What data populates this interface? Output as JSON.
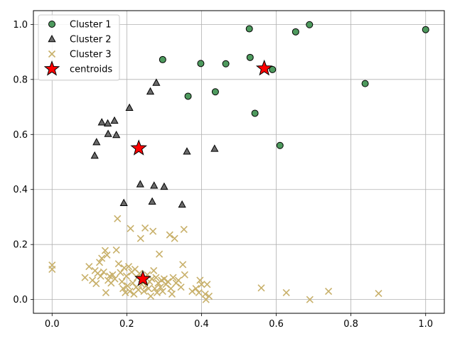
{
  "chart_data": {
    "type": "scatter",
    "title": "",
    "xlabel": "",
    "ylabel": "",
    "xlim": [
      -0.05,
      1.05
    ],
    "ylim": [
      -0.05,
      1.05
    ],
    "xticks": [
      0.0,
      0.2,
      0.4,
      0.6,
      0.8,
      1.0
    ],
    "yticks": [
      0.0,
      0.2,
      0.4,
      0.6,
      0.8,
      1.0
    ],
    "xtick_labels": [
      "0.0",
      "0.2",
      "0.4",
      "0.6",
      "0.8",
      "1.0"
    ],
    "ytick_labels": [
      "0.0",
      "0.2",
      "0.4",
      "0.6",
      "0.8",
      "1.0"
    ],
    "grid": true,
    "legend_position": "top-left",
    "series": [
      {
        "name": "Cluster 1",
        "marker": "circle",
        "color": "#4e9a5e",
        "points": [
          [
            0.296,
            0.872
          ],
          [
            0.398,
            0.858
          ],
          [
            0.364,
            0.739
          ],
          [
            0.465,
            0.857
          ],
          [
            0.437,
            0.755
          ],
          [
            0.528,
            0.984
          ],
          [
            0.53,
            0.88
          ],
          [
            0.543,
            0.677
          ],
          [
            0.59,
            0.836
          ],
          [
            0.61,
            0.56
          ],
          [
            0.652,
            0.973
          ],
          [
            0.689,
            0.999
          ],
          [
            0.838,
            0.785
          ],
          [
            1.0,
            0.981
          ]
        ]
      },
      {
        "name": "Cluster 2",
        "marker": "triangle",
        "color": "#6b6b6b",
        "points": [
          [
            0.114,
            0.523
          ],
          [
            0.119,
            0.572
          ],
          [
            0.133,
            0.644
          ],
          [
            0.149,
            0.64
          ],
          [
            0.15,
            0.602
          ],
          [
            0.167,
            0.65
          ],
          [
            0.172,
            0.598
          ],
          [
            0.192,
            0.351
          ],
          [
            0.207,
            0.697
          ],
          [
            0.236,
            0.419
          ],
          [
            0.263,
            0.756
          ],
          [
            0.268,
            0.356
          ],
          [
            0.273,
            0.414
          ],
          [
            0.279,
            0.788
          ],
          [
            0.3,
            0.41
          ],
          [
            0.348,
            0.345
          ],
          [
            0.361,
            0.538
          ],
          [
            0.435,
            0.548
          ]
        ]
      },
      {
        "name": "Cluster 3",
        "marker": "x",
        "color": "#c8b06a",
        "points": [
          [
            0.0,
            0.125
          ],
          [
            0.0,
            0.11
          ],
          [
            0.088,
            0.08
          ],
          [
            0.099,
            0.12
          ],
          [
            0.108,
            0.07
          ],
          [
            0.115,
            0.105
          ],
          [
            0.118,
            0.058
          ],
          [
            0.122,
            0.095
          ],
          [
            0.127,
            0.135
          ],
          [
            0.13,
            0.085
          ],
          [
            0.133,
            0.15
          ],
          [
            0.138,
            0.1
          ],
          [
            0.142,
            0.178
          ],
          [
            0.144,
            0.025
          ],
          [
            0.147,
            0.162
          ],
          [
            0.15,
            0.07
          ],
          [
            0.154,
            0.085
          ],
          [
            0.158,
            0.06
          ],
          [
            0.162,
            0.09
          ],
          [
            0.168,
            0.075
          ],
          [
            0.172,
            0.18
          ],
          [
            0.175,
            0.294
          ],
          [
            0.178,
            0.13
          ],
          [
            0.183,
            0.098
          ],
          [
            0.187,
            0.065
          ],
          [
            0.19,
            0.04
          ],
          [
            0.193,
            0.115
          ],
          [
            0.196,
            0.025
          ],
          [
            0.199,
            0.085
          ],
          [
            0.202,
            0.05
          ],
          [
            0.205,
            0.12
          ],
          [
            0.208,
            0.03
          ],
          [
            0.21,
            0.258
          ],
          [
            0.213,
            0.1
          ],
          [
            0.216,
            0.06
          ],
          [
            0.219,
            0.02
          ],
          [
            0.222,
            0.11
          ],
          [
            0.225,
            0.045
          ],
          [
            0.228,
            0.08
          ],
          [
            0.231,
            0.035
          ],
          [
            0.234,
            0.095
          ],
          [
            0.237,
            0.222
          ],
          [
            0.24,
            0.055
          ],
          [
            0.243,
            0.07
          ],
          [
            0.246,
            0.03
          ],
          [
            0.249,
            0.26
          ],
          [
            0.252,
            0.05
          ],
          [
            0.255,
            0.09
          ],
          [
            0.258,
            0.04
          ],
          [
            0.261,
            0.065
          ],
          [
            0.264,
            0.012
          ],
          [
            0.267,
            0.075
          ],
          [
            0.27,
            0.248
          ],
          [
            0.272,
            0.105
          ],
          [
            0.275,
            0.04
          ],
          [
            0.278,
            0.08
          ],
          [
            0.281,
            0.025
          ],
          [
            0.284,
            0.06
          ],
          [
            0.287,
            0.165
          ],
          [
            0.29,
            0.045
          ],
          [
            0.293,
            0.07
          ],
          [
            0.296,
            0.03
          ],
          [
            0.3,
            0.075
          ],
          [
            0.305,
            0.055
          ],
          [
            0.31,
            0.065
          ],
          [
            0.315,
            0.235
          ],
          [
            0.318,
            0.04
          ],
          [
            0.321,
            0.02
          ],
          [
            0.324,
            0.08
          ],
          [
            0.328,
            0.222
          ],
          [
            0.332,
            0.06
          ],
          [
            0.338,
            0.07
          ],
          [
            0.345,
            0.045
          ],
          [
            0.35,
            0.127
          ],
          [
            0.353,
            0.255
          ],
          [
            0.355,
            0.09
          ],
          [
            0.375,
            0.03
          ],
          [
            0.385,
            0.04
          ],
          [
            0.393,
            0.025
          ],
          [
            0.396,
            0.07
          ],
          [
            0.4,
            0.055
          ],
          [
            0.41,
            0.02
          ],
          [
            0.412,
            0.0
          ],
          [
            0.415,
            0.055
          ],
          [
            0.42,
            0.012
          ],
          [
            0.56,
            0.042
          ],
          [
            0.627,
            0.025
          ],
          [
            0.69,
            0.0
          ],
          [
            0.74,
            0.03
          ],
          [
            0.874,
            0.022
          ]
        ]
      },
      {
        "name": "centroids",
        "marker": "star",
        "color": "#ff0000",
        "points": [
          [
            0.232,
            0.55
          ],
          [
            0.568,
            0.84
          ],
          [
            0.243,
            0.075
          ]
        ]
      }
    ]
  }
}
